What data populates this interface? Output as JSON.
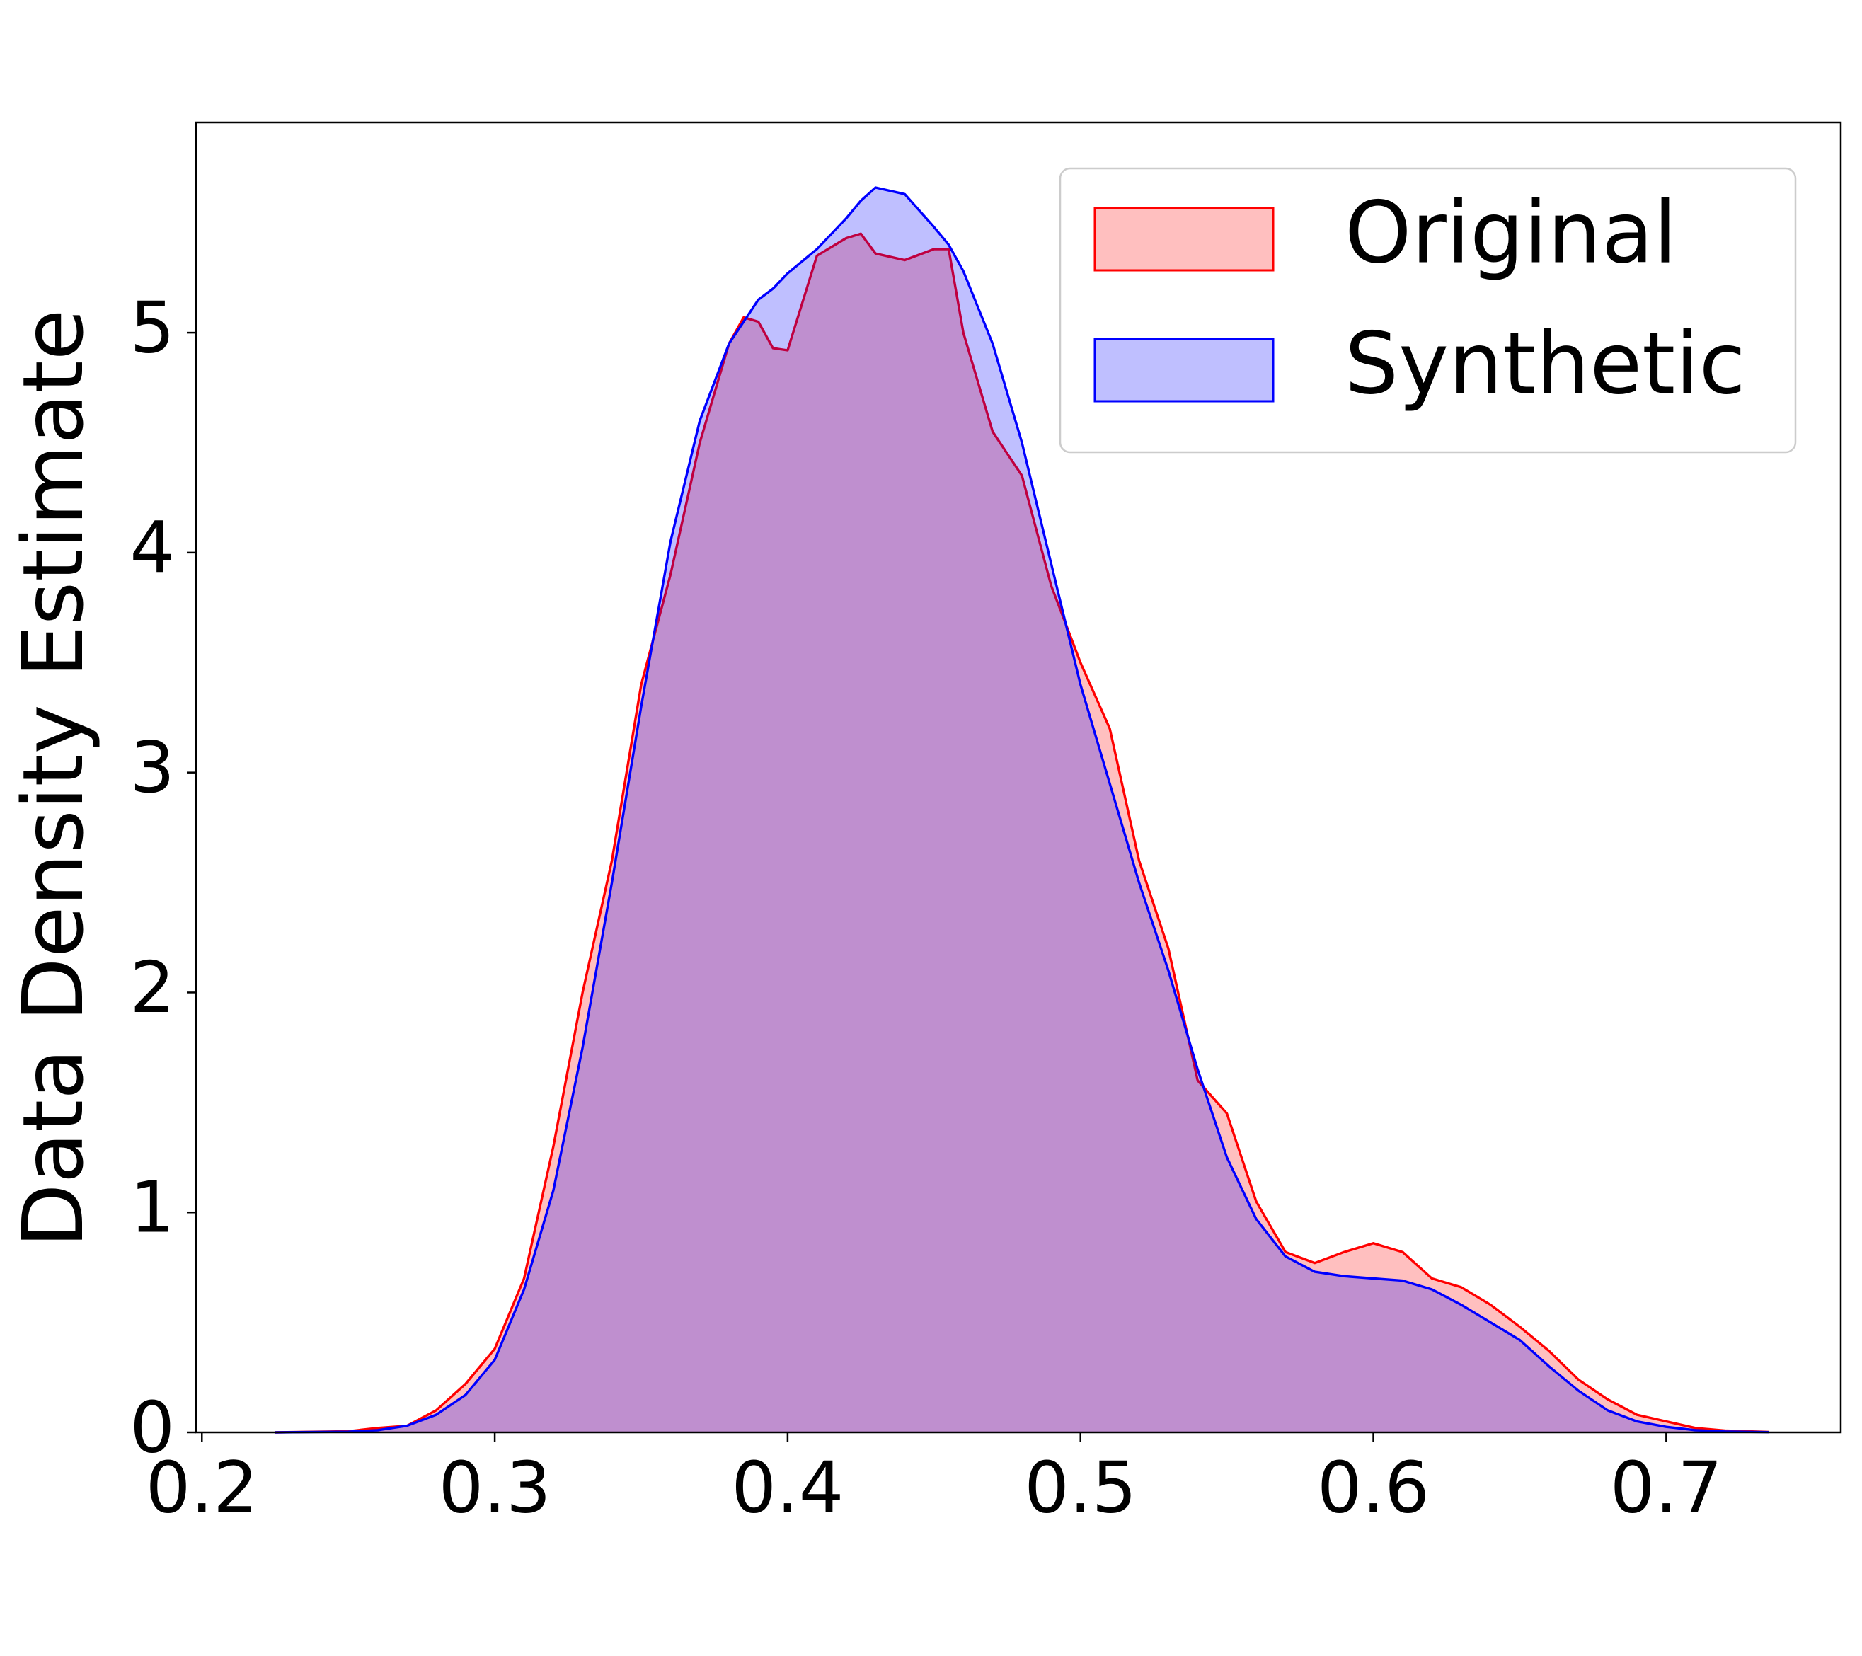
{
  "chart_data": {
    "type": "area",
    "y_label": "Data Density Estimate",
    "x": [
      0.225,
      0.25,
      0.26,
      0.27,
      0.28,
      0.29,
      0.3,
      0.31,
      0.32,
      0.33,
      0.34,
      0.35,
      0.36,
      0.37,
      0.38,
      0.385,
      0.39,
      0.395,
      0.4,
      0.41,
      0.42,
      0.425,
      0.43,
      0.44,
      0.45,
      0.455,
      0.46,
      0.47,
      0.48,
      0.49,
      0.5,
      0.51,
      0.52,
      0.53,
      0.54,
      0.55,
      0.56,
      0.57,
      0.58,
      0.59,
      0.6,
      0.61,
      0.62,
      0.63,
      0.64,
      0.65,
      0.66,
      0.67,
      0.68,
      0.69,
      0.7,
      0.71,
      0.72,
      0.735
    ],
    "series": [
      {
        "name": "Original",
        "color": "red",
        "values": [
          0,
          0.005,
          0.02,
          0.03,
          0.1,
          0.22,
          0.38,
          0.7,
          1.3,
          2.0,
          2.6,
          3.4,
          3.9,
          4.5,
          4.95,
          5.07,
          5.05,
          4.93,
          4.92,
          5.35,
          5.43,
          5.45,
          5.36,
          5.33,
          5.38,
          5.38,
          5.0,
          4.55,
          4.35,
          3.85,
          3.5,
          3.2,
          2.6,
          2.2,
          1.6,
          1.45,
          1.05,
          0.82,
          0.77,
          0.82,
          0.86,
          0.82,
          0.7,
          0.66,
          0.58,
          0.48,
          0.37,
          0.24,
          0.15,
          0.08,
          0.05,
          0.02,
          0.008,
          0.002
        ]
      },
      {
        "name": "Synthetic",
        "color": "blue",
        "values": [
          0,
          0.003,
          0.01,
          0.03,
          0.08,
          0.17,
          0.33,
          0.65,
          1.1,
          1.75,
          2.5,
          3.3,
          4.05,
          4.6,
          4.95,
          5.05,
          5.15,
          5.2,
          5.27,
          5.38,
          5.52,
          5.6,
          5.66,
          5.63,
          5.48,
          5.4,
          5.28,
          4.95,
          4.5,
          3.95,
          3.4,
          2.95,
          2.5,
          2.1,
          1.65,
          1.25,
          0.97,
          0.8,
          0.73,
          0.71,
          0.7,
          0.69,
          0.65,
          0.58,
          0.5,
          0.42,
          0.3,
          0.19,
          0.1,
          0.05,
          0.025,
          0.01,
          0.004,
          0.001
        ]
      }
    ],
    "xlim": [
      0.198,
      0.7596
    ],
    "xticks": [
      0.2,
      0.3,
      0.4,
      0.5,
      0.6,
      0.7
    ],
    "ylim": [
      0,
      5.956
    ],
    "yticks": [
      0,
      1,
      2,
      3,
      4,
      5
    ],
    "fill_opacity": 0.25,
    "legend": "upper right"
  }
}
